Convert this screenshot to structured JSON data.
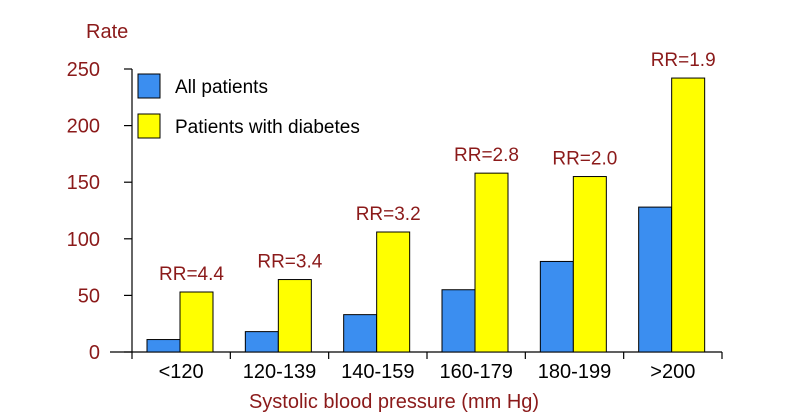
{
  "chart_data": {
    "type": "bar",
    "ylabel": "Rate",
    "xlabel": "Systolic blood pressure (mm Hg)",
    "ylim": [
      0,
      250
    ],
    "yticks": [
      0,
      50,
      100,
      150,
      200,
      250
    ],
    "categories": [
      "<120",
      "120-139",
      "140-159",
      "160-179",
      "180-199",
      ">200"
    ],
    "series": [
      {
        "name": "All patients",
        "values": [
          11,
          18,
          33,
          55,
          80,
          128
        ],
        "color": "#3b8ef0"
      },
      {
        "name": "Patients with diabetes",
        "values": [
          53,
          64,
          106,
          158,
          155,
          242
        ],
        "color": "#ffff00"
      }
    ],
    "annotations": [
      "RR=4.4",
      "RR=3.4",
      "RR=3.2",
      "RR=2.8",
      "RR=2.0",
      "RR=1.9"
    ],
    "legend_position": "top-left",
    "grid": false
  }
}
